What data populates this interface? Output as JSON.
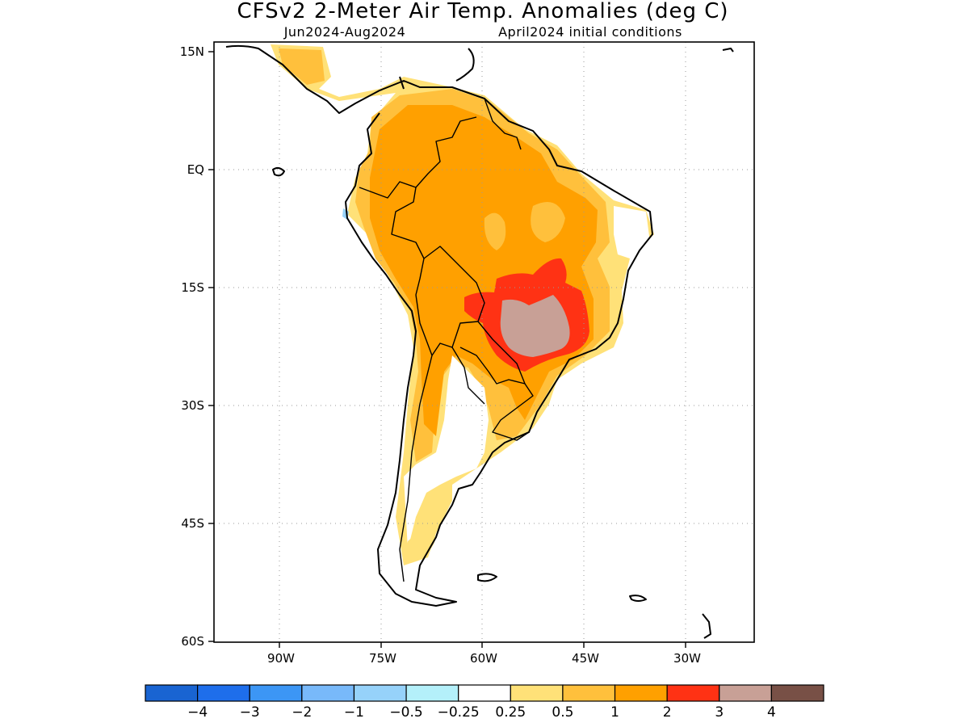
{
  "title": "CFSv2 2-Meter Air Temp. Anomalies (deg C)",
  "subtitle_period": "Jun2024-Aug2024",
  "subtitle_ic": "April2024 initial conditions",
  "map": {
    "lat_ticks": [
      "15N",
      "EQ",
      "15S",
      "30S",
      "45S",
      "60S"
    ],
    "lon_ticks": [
      "90W",
      "75W",
      "60W",
      "45W",
      "30W"
    ],
    "grid": true
  },
  "colorbar": {
    "labels": [
      "−4",
      "−3",
      "−2",
      "−1",
      "−0.5",
      "−0.25",
      "0.25",
      "0.5",
      "1",
      "2",
      "3",
      "4"
    ],
    "colors": [
      "#1964d2",
      "#1e6eeb",
      "#3c96f5",
      "#78b9fa",
      "#96d2fa",
      "#b4f0fa",
      "#ffffff",
      "#ffe178",
      "#ffc03c",
      "#ffa000",
      "#ff3214",
      "#c8a096",
      "#785046"
    ]
  }
}
